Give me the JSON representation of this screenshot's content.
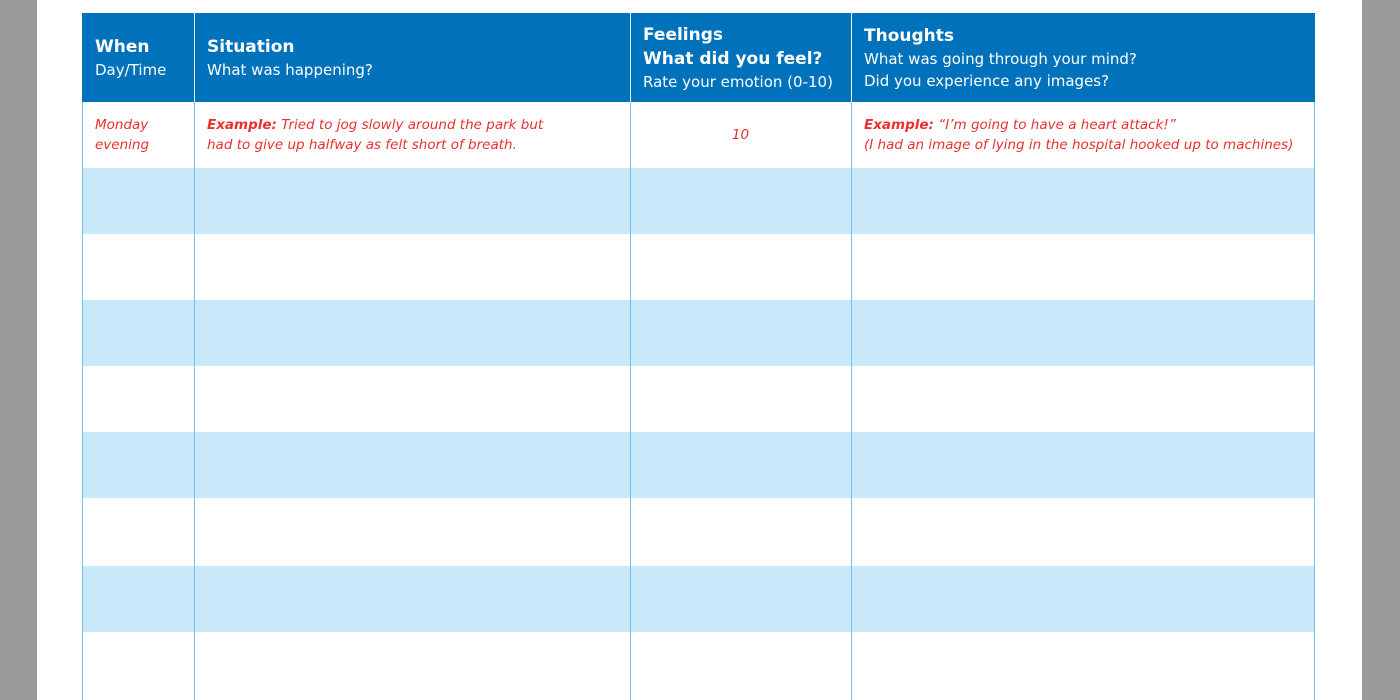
{
  "table": {
    "header": [
      {
        "title": [
          "When"
        ],
        "subtitle": [
          "Day/Time"
        ]
      },
      {
        "title": [
          "Situation"
        ],
        "subtitle": [
          "What was happening?"
        ]
      },
      {
        "title": [
          "Feelings",
          "What did you feel?"
        ],
        "subtitle": [
          "Rate your emotion (0-10)"
        ]
      },
      {
        "title": [
          "Thoughts"
        ],
        "subtitle": [
          "What was going through your mind?",
          "Did you experience any images?"
        ]
      }
    ],
    "example": {
      "when": [
        "Monday",
        "evening"
      ],
      "situation": {
        "label": "Example:",
        "text": [
          "Tried to jog slowly around the park but",
          "had to give up halfway as felt short of breath."
        ]
      },
      "rating": 10,
      "thoughts": {
        "label": "Example:",
        "text": [
          "“I’m going to have a heart attack!”",
          "(I had an image of lying in the hospital hooked up to machines)"
        ]
      }
    }
  }
}
